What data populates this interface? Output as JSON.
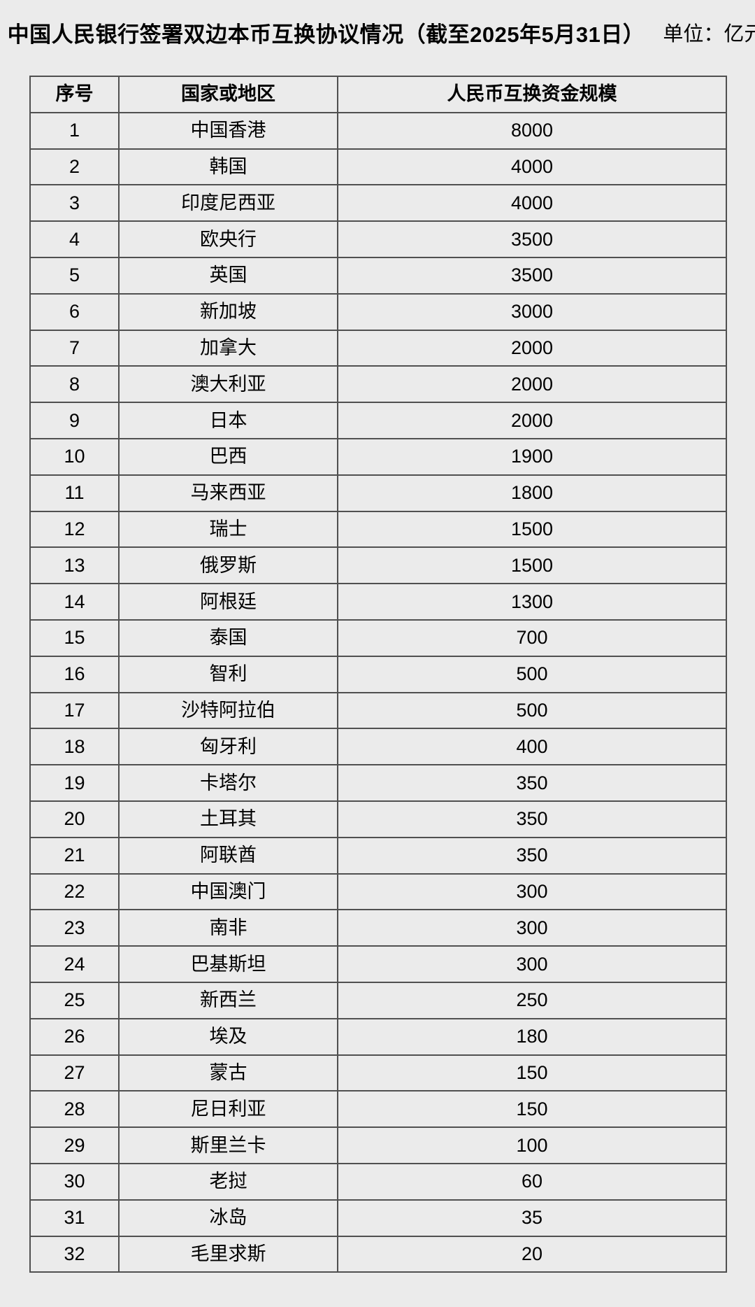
{
  "colors": {
    "page_background": "#ebebeb",
    "grid_border": "#505050",
    "text": "#000000"
  },
  "chart_data": {
    "type": "table",
    "title": "中国人民银行签署双边本币互换协议情况（截至2025年5月31日）",
    "unit_label": "单位：亿元",
    "columns": [
      "序号",
      "国家或地区",
      "人民币互换资金规模"
    ],
    "rows": [
      [
        1,
        "中国香港",
        8000
      ],
      [
        2,
        "韩国",
        4000
      ],
      [
        3,
        "印度尼西亚",
        4000
      ],
      [
        4,
        "欧央行",
        3500
      ],
      [
        5,
        "英国",
        3500
      ],
      [
        6,
        "新加坡",
        3000
      ],
      [
        7,
        "加拿大",
        2000
      ],
      [
        8,
        "澳大利亚",
        2000
      ],
      [
        9,
        "日本",
        2000
      ],
      [
        10,
        "巴西",
        1900
      ],
      [
        11,
        "马来西亚",
        1800
      ],
      [
        12,
        "瑞士",
        1500
      ],
      [
        13,
        "俄罗斯",
        1500
      ],
      [
        14,
        "阿根廷",
        1300
      ],
      [
        15,
        "泰国",
        700
      ],
      [
        16,
        "智利",
        500
      ],
      [
        17,
        "沙特阿拉伯",
        500
      ],
      [
        18,
        "匈牙利",
        400
      ],
      [
        19,
        "卡塔尔",
        350
      ],
      [
        20,
        "土耳其",
        350
      ],
      [
        21,
        "阿联酋",
        350
      ],
      [
        22,
        "中国澳门",
        300
      ],
      [
        23,
        "南非",
        300
      ],
      [
        24,
        "巴基斯坦",
        300
      ],
      [
        25,
        "新西兰",
        250
      ],
      [
        26,
        "埃及",
        180
      ],
      [
        27,
        "蒙古",
        150
      ],
      [
        28,
        "尼日利亚",
        150
      ],
      [
        29,
        "斯里兰卡",
        100
      ],
      [
        30,
        "老挝",
        60
      ],
      [
        31,
        "冰岛",
        35
      ],
      [
        32,
        "毛里求斯",
        20
      ]
    ]
  }
}
